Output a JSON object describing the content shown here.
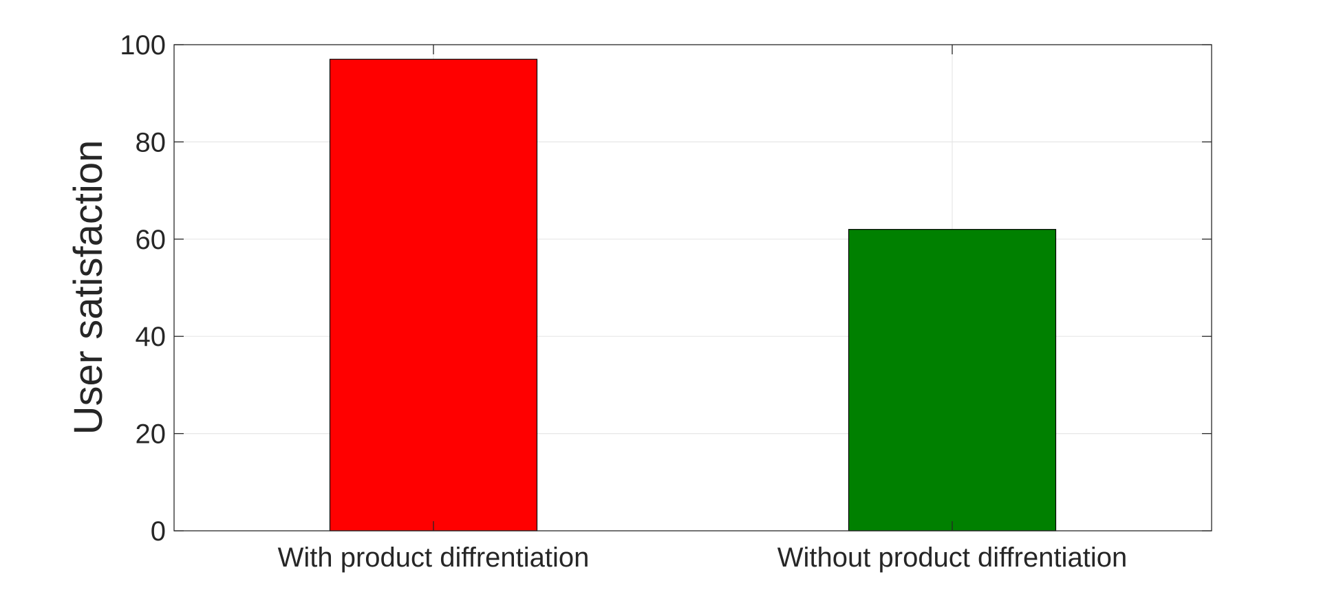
{
  "chart_data": {
    "type": "bar",
    "title": "",
    "xlabel": "",
    "ylabel": "User satisfaction",
    "categories": [
      "With product diffrentiation",
      "Without product diffrentiation"
    ],
    "values": [
      97,
      62
    ],
    "bar_colors": [
      "#ff0000",
      "#008000"
    ],
    "bar_edge_color": "#000000",
    "ylim": [
      0,
      100
    ],
    "yticks": [
      0,
      20,
      40,
      60,
      80,
      100
    ],
    "grid": true,
    "legend": "none"
  }
}
